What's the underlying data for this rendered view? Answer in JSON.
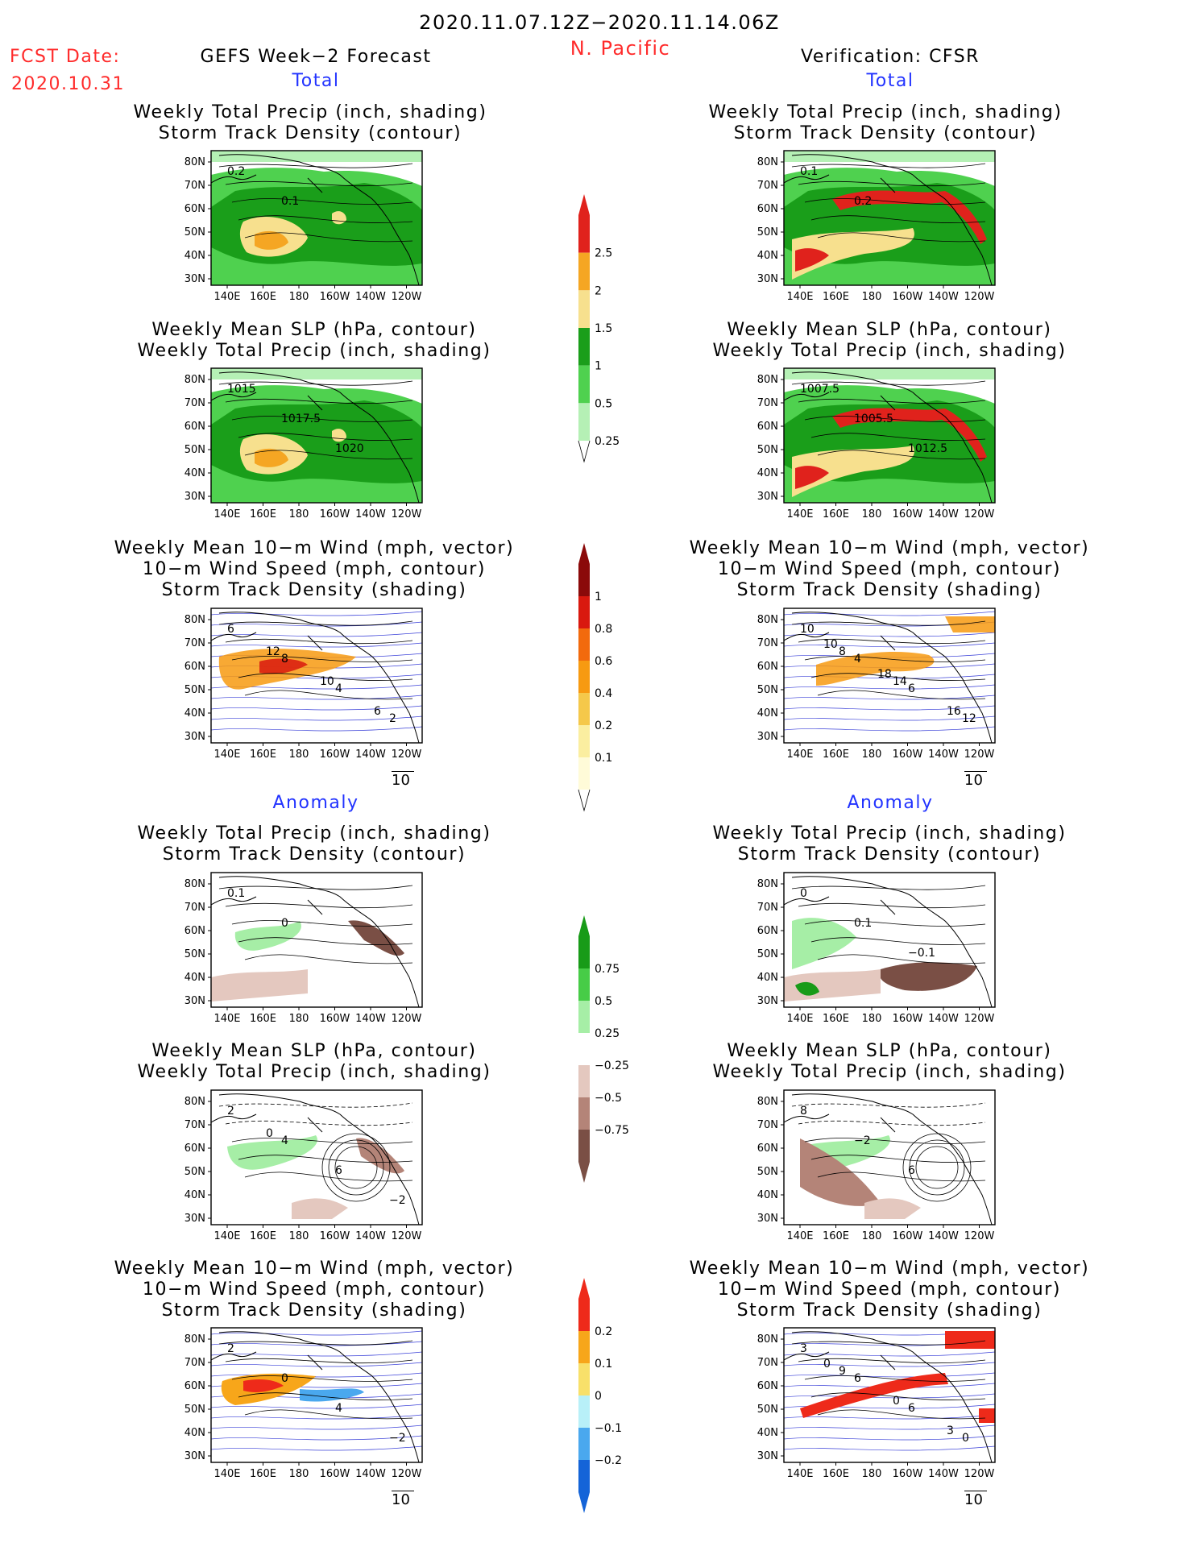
{
  "header": {
    "period": "2020.11.07.12Z−2020.11.14.06Z",
    "region": "N. Pacific",
    "fcst_date_label": "FCST Date:",
    "fcst_date_value": "2020.10.31",
    "left_title": "GEFS Week−2 Forecast",
    "right_title": "Verification: CFSR"
  },
  "sections": {
    "total": "Total",
    "anomaly": "Anomaly"
  },
  "panel_titles": {
    "precip_track": [
      "Weekly Total Precip (inch, shading)",
      "Storm Track Density (contour)"
    ],
    "slp_precip": [
      "Weekly Mean SLP (hPa, contour)",
      "Weekly Total Precip (inch, shading)"
    ],
    "wind_track": [
      "Weekly Mean 10−m Wind (mph, vector)",
      "10−m Wind Speed (mph, contour)",
      "Storm Track Density (shading)"
    ]
  },
  "axes": {
    "lat_labels": [
      "80N",
      "70N",
      "60N",
      "50N",
      "40N",
      "30N"
    ],
    "lon_labels": [
      "140E",
      "160E",
      "180",
      "160W",
      "140W",
      "120W"
    ]
  },
  "vector_ref": "10",
  "colorbars": {
    "precip_total": {
      "labels": [
        "2.5",
        "2",
        "1.5",
        "1",
        "0.5",
        "0.25"
      ],
      "colors": [
        "#e0221c",
        "#f5a623",
        "#f7e08e",
        "#1a9e1a",
        "#4fd14f",
        "#b5f0b5"
      ]
    },
    "track_total": {
      "labels": [
        "1",
        "0.8",
        "0.6",
        "0.4",
        "0.2",
        "0.1"
      ],
      "colors": [
        "#8b0a0a",
        "#d9190f",
        "#f26a0d",
        "#f79a11",
        "#f5c84a",
        "#fbeea0",
        "#fffbd8"
      ]
    },
    "precip_anom": {
      "labels": [
        "0.75",
        "0.5",
        "0.25",
        "−0.25",
        "−0.5",
        "−0.75"
      ],
      "colors": [
        "#189b18",
        "#47cc47",
        "#a6eea6",
        "#ffffff",
        "#e4c8bf",
        "#b48478",
        "#7a4f45"
      ]
    },
    "track_anom": {
      "labels": [
        "0.2",
        "0.1",
        "0",
        "−0.1",
        "−0.2"
      ],
      "colors": [
        "#ee2a1a",
        "#f7a61a",
        "#f8e06a",
        "#b8f0f8",
        "#4aa8ee",
        "#1464d8"
      ]
    }
  },
  "contour_labels": {
    "fcst_total_precip": [
      "0.2",
      "0.1"
    ],
    "fcst_total_slp": [
      "1015",
      "1017.5",
      "1020"
    ],
    "fcst_total_wind": [
      "6",
      "8",
      "4",
      "2",
      "12",
      "10",
      "6"
    ],
    "ver_total_precip": [
      "0.1",
      "0.2"
    ],
    "ver_total_slp": [
      "1007.5",
      "1005.5",
      "1012.5"
    ],
    "ver_total_wind": [
      "10",
      "4",
      "6",
      "12",
      "8",
      "14",
      "16",
      "10",
      "18"
    ],
    "fcst_anom_precip": [
      "0.1",
      "0"
    ],
    "fcst_anom_slp": [
      "2",
      "4",
      "6",
      "−2",
      "0"
    ],
    "fcst_anom_wind": [
      "2",
      "0",
      "4",
      "−2"
    ],
    "ver_anom_precip": [
      "0",
      "0.1",
      "−0.1"
    ],
    "ver_anom_slp": [
      "8",
      "−2",
      "6"
    ],
    "ver_anom_wind": [
      "3",
      "6",
      "6",
      "0",
      "9",
      "0",
      "3",
      "0"
    ]
  }
}
